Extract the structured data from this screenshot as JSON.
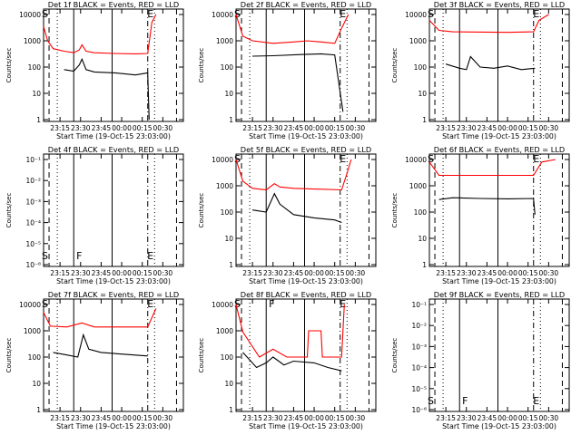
{
  "chart_data": [
    {
      "type": "line",
      "title": "Det 1f BLACK = Events, RED = LLD",
      "xlabel": "Start Time (19-Oct-15 23:03:00)",
      "ylabel": "Counts/sec",
      "x_ticks": [
        "23:15",
        "23:30",
        "23:45",
        "00:00",
        "00:15",
        "00:30"
      ],
      "y_ticks": [
        "1",
        "10",
        "100",
        "1000",
        "10000"
      ],
      "y_scale": "log",
      "ylim": [
        1,
        10000
      ],
      "flags": [
        "S",
        "E"
      ],
      "series": [
        {
          "name": "BLACK = Events",
          "color": "#000000",
          "x": [
            "23:10",
            "23:18",
            "23:25",
            "23:29",
            "23:31",
            "23:34",
            "23:40",
            "23:55",
            "00:10",
            "00:19",
            "00:20"
          ],
          "values": [
            null,
            80,
            70,
            120,
            200,
            80,
            65,
            60,
            50,
            60,
            1
          ]
        },
        {
          "name": "RED = LLD",
          "color": "#ff0000",
          "x": [
            "23:03",
            "23:06",
            "23:10",
            "23:18",
            "23:25",
            "23:29",
            "23:31",
            "23:34",
            "23:40",
            "23:55",
            "00:10",
            "00:19",
            "00:22",
            "00:25"
          ],
          "values": [
            3500,
            1000,
            500,
            400,
            350,
            450,
            700,
            400,
            350,
            330,
            320,
            330,
            5000,
            10000
          ]
        }
      ]
    },
    {
      "type": "line",
      "title": "Det 2f BLACK = Events, RED = LLD",
      "xlabel": "Start Time (19-Oct-15 23:03:00)",
      "ylabel": "Counts/sec",
      "x_ticks": [
        "23:15",
        "23:30",
        "23:45",
        "00:00",
        "00:15",
        "00:30"
      ],
      "y_ticks": [
        "1",
        "10",
        "100",
        "1000",
        "10000"
      ],
      "y_scale": "log",
      "ylim": [
        1,
        10000
      ],
      "flags": [
        "S",
        "E"
      ],
      "series": [
        {
          "name": "BLACK = Events",
          "color": "#000000",
          "x": [
            "23:15",
            "23:30",
            "23:50",
            "00:05",
            "00:15",
            "00:21"
          ],
          "values": [
            260,
            270,
            300,
            320,
            290,
            2
          ]
        },
        {
          "name": "RED = LLD",
          "color": "#ff0000",
          "x": [
            "23:03",
            "23:08",
            "23:15",
            "23:30",
            "23:45",
            "23:55",
            "00:05",
            "00:15",
            "00:20",
            "00:25"
          ],
          "values": [
            10000,
            1500,
            1000,
            800,
            900,
            1000,
            900,
            800,
            3000,
            10000
          ]
        }
      ]
    },
    {
      "type": "line",
      "title": "Det 3f BLACK = Events, RED = LLD",
      "xlabel": "Start Time (19-Oct-15 23:03:00)",
      "ylabel": "Counts/sec",
      "x_ticks": [
        "23:15",
        "23:30",
        "23:45",
        "00:00",
        "00:15",
        "00:30"
      ],
      "y_ticks": [
        "1",
        "10",
        "100",
        "1000",
        "10000"
      ],
      "y_scale": "log",
      "ylim": [
        1,
        10000
      ],
      "flags": [
        "S",
        "E"
      ],
      "series": [
        {
          "name": "BLACK = Events",
          "color": "#000000",
          "x": [
            "23:15",
            "23:25",
            "23:30",
            "23:33",
            "23:40",
            "23:50",
            "00:00",
            "00:10",
            "00:20"
          ],
          "values": [
            130,
            90,
            80,
            250,
            100,
            90,
            110,
            80,
            90
          ]
        },
        {
          "name": "RED = LLD",
          "color": "#ff0000",
          "x": [
            "23:03",
            "23:10",
            "23:20",
            "00:00",
            "00:19",
            "00:23",
            "00:30"
          ],
          "values": [
            6000,
            2500,
            2200,
            2100,
            2200,
            6000,
            10000
          ]
        }
      ]
    },
    {
      "type": "line",
      "title": "Det 4f BLACK = Events, RED = LLD",
      "xlabel": "Start Time (19-Oct-15 23:03:00)",
      "ylabel": "Counts/sec",
      "x_ticks": [
        "23:15",
        "23:30",
        "23:45",
        "00:00",
        "00:15",
        "00:30"
      ],
      "y_ticks": [
        "10⁻⁶",
        "10⁻⁵",
        "10⁻⁴",
        "10⁻³",
        "10⁻²",
        "10⁻¹"
      ],
      "y_scale": "log",
      "flags": [
        "S",
        "F",
        "E"
      ],
      "series": []
    },
    {
      "type": "line",
      "title": "Det 5f BLACK = Events, RED = LLD",
      "xlabel": "Start Time (19-Oct-15 23:03:00)",
      "ylabel": "Counts/sec",
      "x_ticks": [
        "23:15",
        "23:30",
        "23:45",
        "00:00",
        "00:15",
        "00:30"
      ],
      "y_ticks": [
        "1",
        "10",
        "100",
        "1000",
        "10000"
      ],
      "y_scale": "log",
      "ylim": [
        1,
        10000
      ],
      "flags": [
        "S",
        "E"
      ],
      "series": [
        {
          "name": "BLACK = Events",
          "color": "#000000",
          "x": [
            "23:15",
            "23:25",
            "23:31",
            "23:35",
            "23:45",
            "00:00",
            "00:15",
            "00:20"
          ],
          "values": [
            120,
            100,
            500,
            200,
            80,
            60,
            50,
            40
          ]
        },
        {
          "name": "RED = LLD",
          "color": "#ff0000",
          "x": [
            "23:03",
            "23:08",
            "23:15",
            "23:25",
            "23:31",
            "23:35",
            "23:45",
            "00:00",
            "00:20",
            "00:24",
            "00:27"
          ],
          "values": [
            10000,
            1500,
            800,
            700,
            1200,
            900,
            800,
            750,
            700,
            3000,
            10000
          ]
        }
      ]
    },
    {
      "type": "line",
      "title": "Det 6f BLACK = Events, RED = LLD",
      "xlabel": "Start Time (19-Oct-15 23:03:00)",
      "ylabel": "Counts/sec",
      "x_ticks": [
        "23:15",
        "23:30",
        "23:45",
        "00:00",
        "00:15",
        "00:30"
      ],
      "y_ticks": [
        "1",
        "10",
        "100",
        "1000",
        "10000"
      ],
      "y_scale": "log",
      "ylim": [
        1,
        10000
      ],
      "flags": [
        "S",
        "E"
      ],
      "series": [
        {
          "name": "BLACK = Events",
          "color": "#000000",
          "x": [
            "23:10",
            "23:20",
            "23:40",
            "00:00",
            "00:19",
            "00:20"
          ],
          "values": [
            300,
            350,
            330,
            320,
            330,
            80
          ]
        },
        {
          "name": "RED = LLD",
          "color": "#ff0000",
          "x": [
            "23:03",
            "23:10",
            "23:30",
            "00:00",
            "00:19",
            "00:25",
            "00:35"
          ],
          "values": [
            8000,
            2500,
            2500,
            2500,
            2500,
            8000,
            10000
          ]
        }
      ]
    },
    {
      "type": "line",
      "title": "Det 7f BLACK = Events, RED = LLD",
      "xlabel": "Start Time (19-Oct-15 23:03:00)",
      "ylabel": "Counts/sec",
      "x_ticks": [
        "23:15",
        "23:30",
        "23:45",
        "00:00",
        "00:15",
        "00:30"
      ],
      "y_ticks": [
        "1",
        "10",
        "100",
        "1000",
        "10000"
      ],
      "y_scale": "log",
      "ylim": [
        1,
        10000
      ],
      "flags": [
        "S",
        "E"
      ],
      "series": [
        {
          "name": "BLACK = Events",
          "color": "#000000",
          "x": [
            "23:10",
            "23:20",
            "23:28",
            "23:32",
            "23:36",
            "23:45",
            "00:00",
            "00:19"
          ],
          "values": [
            150,
            120,
            100,
            700,
            200,
            150,
            130,
            110
          ]
        },
        {
          "name": "RED = LLD",
          "color": "#ff0000",
          "x": [
            "23:03",
            "23:08",
            "23:20",
            "23:31",
            "23:40",
            "00:00",
            "00:19",
            "00:25"
          ],
          "values": [
            5000,
            1500,
            1400,
            2000,
            1400,
            1400,
            1400,
            7000
          ]
        }
      ]
    },
    {
      "type": "line",
      "title": "Det 8f BLACK = Events, RED = LLD",
      "xlabel": "Start Time (19-Oct-15 23:03:00)",
      "ylabel": "Counts/sec",
      "x_ticks": [
        "23:15",
        "23:30",
        "23:45",
        "00:00",
        "00:15",
        "00:30"
      ],
      "y_ticks": [
        "1",
        "10",
        "100",
        "1000",
        "10000"
      ],
      "y_scale": "log",
      "ylim": [
        1,
        10000
      ],
      "flags": [
        "S",
        "F",
        "E"
      ],
      "series": [
        {
          "name": "BLACK = Events",
          "color": "#000000",
          "x": [
            "23:08",
            "23:18",
            "23:25",
            "23:30",
            "23:38",
            "23:45",
            "00:00",
            "00:10",
            "00:20"
          ],
          "values": [
            150,
            40,
            60,
            100,
            50,
            70,
            60,
            40,
            30
          ]
        },
        {
          "name": "RED = LLD",
          "color": "#ff0000",
          "x": [
            "23:03",
            "23:08",
            "23:20",
            "23:30",
            "23:40",
            "23:55",
            "23:56",
            "00:05",
            "00:06",
            "00:20",
            "00:22"
          ],
          "values": [
            10000,
            900,
            100,
            200,
            100,
            100,
            1000,
            1000,
            100,
            100,
            10000
          ]
        }
      ]
    },
    {
      "type": "line",
      "title": "Det 9f BLACK = Events, RED = LLD",
      "xlabel": "Start Time (19-Oct-15 23:03:00)",
      "ylabel": "Counts/sec",
      "x_ticks": [
        "23:15",
        "23:30",
        "23:45",
        "00:00",
        "00:15",
        "00:30"
      ],
      "y_ticks": [
        "10⁻⁶",
        "10⁻⁵",
        "10⁻⁴",
        "10⁻³",
        "10⁻²",
        "10⁻¹"
      ],
      "y_scale": "log",
      "flags": [
        "S",
        "F",
        "E"
      ],
      "series": []
    }
  ]
}
